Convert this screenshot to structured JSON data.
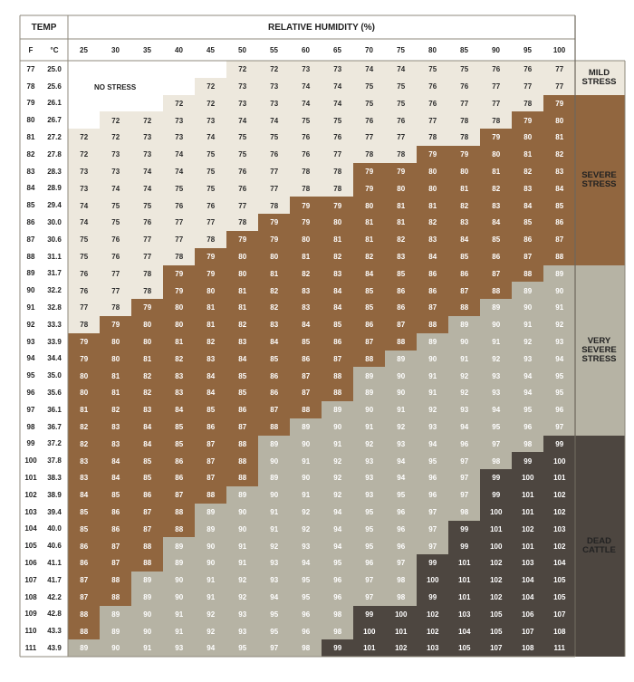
{
  "chart_data": {
    "type": "heatmap",
    "title_temp": "TEMP",
    "title_humidity": "RELATIVE HUMIDITY (%)",
    "col_f": "F",
    "col_c": "°C",
    "humidity": [
      25,
      30,
      35,
      40,
      45,
      50,
      55,
      60,
      65,
      70,
      75,
      80,
      85,
      90,
      95,
      100
    ],
    "temp_f": [
      77,
      78,
      79,
      80,
      81,
      82,
      83,
      84,
      85,
      86,
      87,
      88,
      89,
      90,
      91,
      92,
      93,
      94,
      95,
      96,
      97,
      98,
      99,
      100,
      101,
      102,
      103,
      104,
      105,
      106,
      107,
      108,
      109,
      110,
      111
    ],
    "temp_c": [
      "25.0",
      "25.6",
      "26.1",
      "26.7",
      "27.2",
      "27.8",
      "28.3",
      "28.9",
      "29.4",
      "30.0",
      "30.6",
      "31.1",
      "31.7",
      "32.2",
      "32.8",
      "33.3",
      "33.9",
      "34.4",
      "35.0",
      "35.6",
      "36.1",
      "36.7",
      "37.2",
      "37.8",
      "38.3",
      "38.9",
      "39.4",
      "40.0",
      "40.6",
      "41.1",
      "41.7",
      "42.2",
      "42.8",
      "43.3",
      "43.9"
    ],
    "no_stress_label": "NO STRESS",
    "zones": [
      {
        "name": "MILD\nSTRESS",
        "color": "#ede8dd"
      },
      {
        "name": "SEVERE\nSTRESS",
        "color": "#91663f"
      },
      {
        "name": "VERY\nSEVERE\nSTRESS",
        "color": "#b6b3a4"
      },
      {
        "name": "DEAD\nCATTLE",
        "color": "#4d4640"
      }
    ],
    "no_stress_color": "#ffffff",
    "zone_by_row_rule": "thresholds: <72 none, 72-78 mild, 79-88 severe, 89-98 very severe, >=99 dead",
    "values": [
      [
        null,
        null,
        null,
        null,
        null,
        72,
        72,
        73,
        73,
        74,
        74,
        75,
        75,
        76,
        76,
        77
      ],
      [
        null,
        null,
        null,
        null,
        72,
        73,
        73,
        74,
        74,
        75,
        75,
        76,
        76,
        77,
        77,
        77
      ],
      [
        null,
        null,
        null,
        72,
        72,
        73,
        73,
        74,
        74,
        75,
        75,
        76,
        77,
        77,
        78,
        79
      ],
      [
        null,
        72,
        72,
        73,
        73,
        74,
        74,
        75,
        75,
        76,
        76,
        77,
        78,
        78,
        79,
        80
      ],
      [
        72,
        72,
        73,
        73,
        74,
        75,
        75,
        76,
        76,
        77,
        77,
        78,
        78,
        79,
        80,
        81
      ],
      [
        72,
        73,
        73,
        74,
        75,
        75,
        76,
        76,
        77,
        78,
        78,
        79,
        79,
        80,
        81,
        82
      ],
      [
        73,
        73,
        74,
        74,
        75,
        76,
        77,
        78,
        78,
        79,
        79,
        80,
        80,
        81,
        82,
        83
      ],
      [
        73,
        74,
        74,
        75,
        75,
        76,
        77,
        78,
        78,
        79,
        80,
        80,
        81,
        82,
        83,
        84
      ],
      [
        74,
        75,
        75,
        76,
        76,
        77,
        78,
        79,
        79,
        80,
        81,
        81,
        82,
        83,
        84,
        85
      ],
      [
        74,
        75,
        76,
        77,
        77,
        78,
        79,
        79,
        80,
        81,
        81,
        82,
        83,
        84,
        85,
        86
      ],
      [
        75,
        76,
        77,
        77,
        78,
        79,
        79,
        80,
        81,
        81,
        82,
        83,
        84,
        85,
        86,
        87
      ],
      [
        75,
        76,
        77,
        78,
        79,
        80,
        80,
        81,
        82,
        82,
        83,
        84,
        85,
        86,
        87,
        88
      ],
      [
        76,
        77,
        78,
        79,
        79,
        80,
        81,
        82,
        83,
        84,
        85,
        86,
        86,
        87,
        88,
        89
      ],
      [
        76,
        77,
        78,
        79,
        80,
        81,
        82,
        83,
        84,
        85,
        86,
        86,
        87,
        88,
        89,
        90
      ],
      [
        77,
        78,
        79,
        80,
        81,
        81,
        82,
        83,
        84,
        85,
        86,
        87,
        88,
        89,
        90,
        91
      ],
      [
        78,
        79,
        80,
        80,
        81,
        82,
        83,
        84,
        85,
        86,
        87,
        88,
        89,
        90,
        91,
        92
      ],
      [
        79,
        80,
        80,
        81,
        82,
        83,
        84,
        85,
        86,
        87,
        88,
        89,
        90,
        91,
        92,
        93
      ],
      [
        79,
        80,
        81,
        82,
        83,
        84,
        85,
        86,
        87,
        88,
        89,
        90,
        91,
        92,
        93,
        94
      ],
      [
        80,
        81,
        82,
        83,
        84,
        85,
        86,
        87,
        88,
        89,
        90,
        91,
        92,
        93,
        94,
        95
      ],
      [
        80,
        81,
        82,
        83,
        84,
        85,
        86,
        87,
        88,
        89,
        90,
        91,
        92,
        93,
        94,
        95
      ],
      [
        81,
        82,
        83,
        84,
        85,
        86,
        87,
        88,
        89,
        90,
        91,
        92,
        93,
        94,
        95,
        96
      ],
      [
        82,
        83,
        84,
        85,
        86,
        87,
        88,
        89,
        90,
        91,
        92,
        93,
        94,
        95,
        96,
        97
      ],
      [
        82,
        83,
        84,
        85,
        87,
        88,
        89,
        90,
        91,
        92,
        93,
        94,
        96,
        97,
        98,
        99
      ],
      [
        83,
        84,
        85,
        86,
        87,
        88,
        90,
        91,
        92,
        93,
        94,
        95,
        97,
        98,
        99,
        100
      ],
      [
        83,
        84,
        85,
        86,
        87,
        88,
        89,
        90,
        92,
        93,
        94,
        96,
        97,
        99,
        100,
        101
      ],
      [
        84,
        85,
        86,
        87,
        88,
        89,
        90,
        91,
        92,
        93,
        95,
        96,
        97,
        99,
        101,
        102
      ],
      [
        85,
        86,
        87,
        88,
        89,
        90,
        91,
        92,
        94,
        95,
        96,
        97,
        98,
        100,
        101,
        102
      ],
      [
        85,
        86,
        87,
        88,
        89,
        90,
        91,
        92,
        94,
        95,
        96,
        97,
        99,
        101,
        102,
        103
      ],
      [
        86,
        87,
        88,
        89,
        90,
        91,
        92,
        93,
        94,
        95,
        96,
        97,
        99,
        100,
        101,
        102
      ],
      [
        86,
        87,
        88,
        89,
        90,
        91,
        93,
        94,
        95,
        96,
        97,
        99,
        101,
        102,
        103,
        104
      ],
      [
        87,
        88,
        89,
        90,
        91,
        92,
        93,
        95,
        96,
        97,
        98,
        100,
        101,
        102,
        104,
        105
      ],
      [
        87,
        88,
        89,
        90,
        91,
        92,
        94,
        95,
        96,
        97,
        98,
        99,
        101,
        102,
        104,
        105
      ],
      [
        88,
        89,
        90,
        91,
        92,
        93,
        95,
        96,
        98,
        99,
        100,
        102,
        103,
        105,
        106,
        107
      ],
      [
        88,
        89,
        90,
        91,
        92,
        93,
        95,
        96,
        98,
        100,
        101,
        102,
        104,
        105,
        107,
        108
      ],
      [
        89,
        90,
        91,
        93,
        94,
        95,
        97,
        98,
        99,
        101,
        102,
        103,
        105,
        107,
        108,
        111
      ]
    ]
  }
}
